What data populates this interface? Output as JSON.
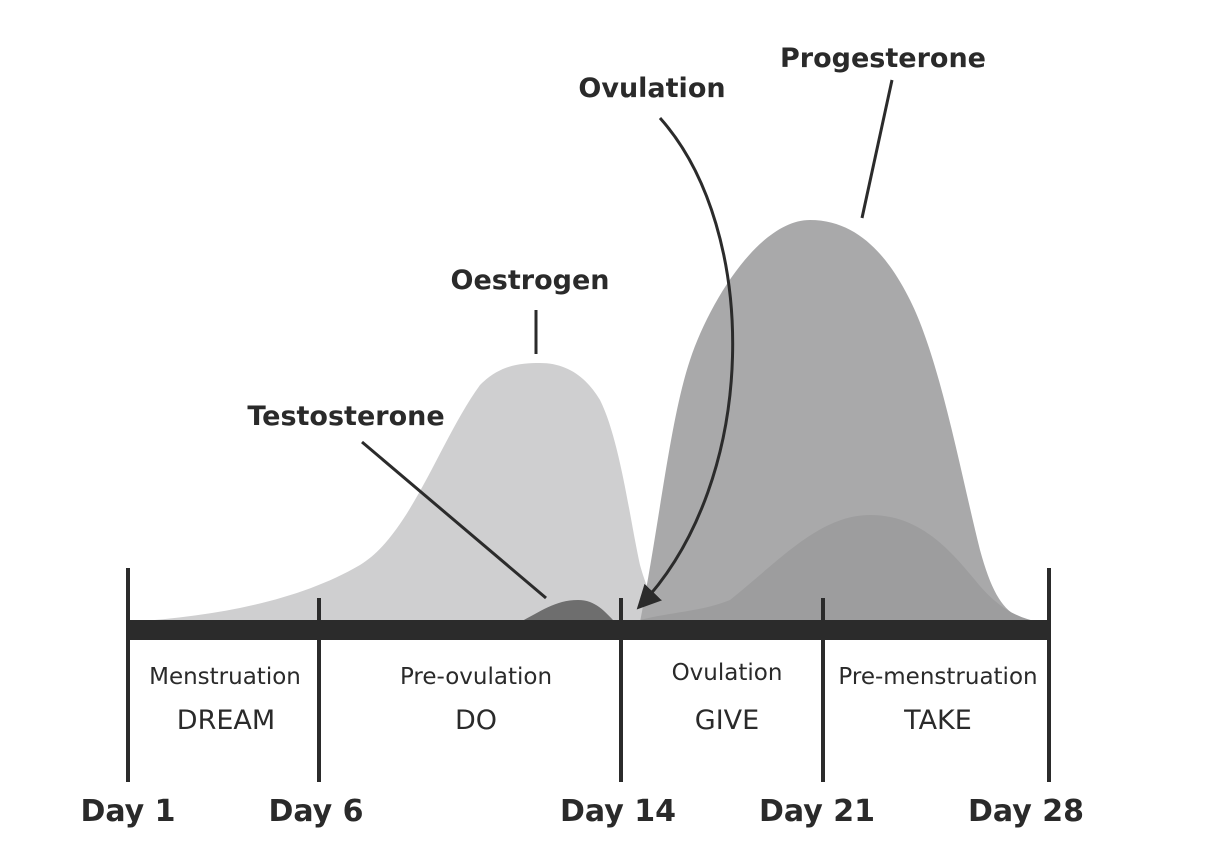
{
  "hormones": [
    {
      "name": "Testosterone",
      "color": "#6e6e6e"
    },
    {
      "name": "Oestrogen",
      "color": "#cfcfd0"
    },
    {
      "name": "Progesterone",
      "color": "#a9a9aa"
    }
  ],
  "ovulation_label": "Ovulation",
  "phases": [
    {
      "name": "Menstruation",
      "mode": "DREAM"
    },
    {
      "name": "Pre-ovulation",
      "mode": "DO"
    },
    {
      "name": "Ovulation",
      "mode": "GIVE"
    },
    {
      "name": "Pre-menstruation",
      "mode": "TAKE"
    }
  ],
  "days": [
    "Day 1",
    "Day 6",
    "Day 14",
    "Day 21",
    "Day 28"
  ],
  "colors": {
    "axis": "#2b2b2b",
    "text": "#2a2a2a",
    "second_progesterone_wave": "#9d9d9e"
  }
}
